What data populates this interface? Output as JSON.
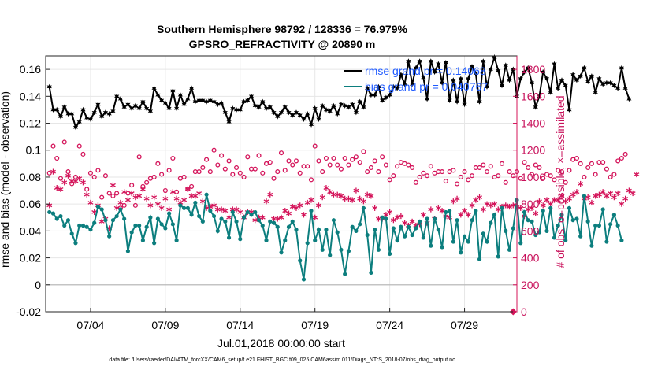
{
  "title_line1": "Southern Hemisphere 98792 / 128336 = 76.979%",
  "title_line2": "GPSRO_REFRACTIVITY @ 20890 m",
  "footer": "data file: /Users/raeder/DAI/ATM_forcXX/CAM6_setup/f.e21.FHIST_BGC.f09_025.CAM6assim.011/Diags_NTrS_2018-07/obs_diag_output.nc",
  "colors": {
    "rmse": "#000000",
    "bias": "#0c7e7e",
    "obs": "#d4145a",
    "zero_line": "#b4b4b4",
    "legend_text": "#1e5aff"
  },
  "chart_data": {
    "type": "line",
    "title": "Southern Hemisphere 98792 / 128336 = 76.979%",
    "subtitle": "GPSRO_REFRACTIVITY @ 20890 m",
    "xlabel": "Jul.01,2018 00:00:00 start",
    "ylabel": "rmse and bias (model - observation)",
    "ylabel_right": "# of obs: o=possible; ×=assimilated",
    "xlim": [
      1,
      32.5
    ],
    "ylim": [
      -0.02,
      0.17
    ],
    "ylim_right": [
      0,
      1900
    ],
    "x_ticks": [
      4,
      9,
      14,
      19,
      24,
      29
    ],
    "x_tick_labels": [
      "07/04",
      "07/09",
      "07/14",
      "07/19",
      "07/24",
      "07/29"
    ],
    "y_ticks": [
      -0.02,
      0,
      0.02,
      0.04,
      0.06,
      0.08,
      0.1,
      0.12,
      0.14,
      0.16
    ],
    "y_tick_labels": [
      "-0.02",
      "0",
      "0.02",
      "0.04",
      "0.06",
      "0.08",
      "0.1",
      "0.12",
      "0.14",
      "0.16"
    ],
    "y_right_ticks": [
      0,
      200,
      400,
      600,
      800,
      1000,
      1200,
      1400,
      1600,
      1800
    ],
    "y_right_tick_labels": [
      "0",
      "200",
      "400",
      "600",
      "800",
      "1000",
      "1200",
      "1400",
      "1600",
      "1800"
    ],
    "grid": true,
    "legend": {
      "placement": "top-right",
      "entries": [
        {
          "series": "rmse",
          "label": "rmse grand pr = 0.14068"
        },
        {
          "series": "bias",
          "label": "bias grand pr = 0.040767"
        }
      ]
    },
    "x_start": 1.25,
    "x_step": 0.25,
    "series": [
      {
        "key": "rmse",
        "axis": "left",
        "marker": "hexagram",
        "line": true,
        "values": [
          0.147,
          0.13,
          0.13,
          0.125,
          0.132,
          0.127,
          0.127,
          0.117,
          0.121,
          0.13,
          0.124,
          0.123,
          0.128,
          0.134,
          0.125,
          0.128,
          0.127,
          0.129,
          0.14,
          0.138,
          0.132,
          0.134,
          0.131,
          0.133,
          0.131,
          0.136,
          0.131,
          0.129,
          0.146,
          0.141,
          0.137,
          0.135,
          0.131,
          0.144,
          0.131,
          0.141,
          0.134,
          0.138,
          0.146,
          0.136,
          0.137,
          0.137,
          0.136,
          0.137,
          0.136,
          0.134,
          0.135,
          0.128,
          0.121,
          0.131,
          0.13,
          0.13,
          0.136,
          0.137,
          0.14,
          0.133,
          0.132,
          0.136,
          0.131,
          0.132,
          0.128,
          0.125,
          0.128,
          0.132,
          0.128,
          0.126,
          0.128,
          0.126,
          0.123,
          0.127,
          0.119,
          0.131,
          0.123,
          0.133,
          0.13,
          0.129,
          0.133,
          0.127,
          0.134,
          0.133,
          0.132,
          0.134,
          0.128,
          0.136,
          0.132,
          0.146,
          0.141,
          0.141,
          0.147,
          0.137,
          0.139,
          0.141,
          0.147,
          0.146,
          0.156,
          0.149,
          0.166,
          0.149,
          0.161,
          0.166,
          0.154,
          0.138,
          0.166,
          0.158,
          0.164,
          0.15,
          0.165,
          0.137,
          0.152,
          0.136,
          0.153,
          0.134,
          0.153,
          0.162,
          0.157,
          0.136,
          0.166,
          0.147,
          0.16,
          0.169,
          0.159,
          0.148,
          0.163,
          0.152,
          0.16,
          0.14,
          0.153,
          0.158,
          0.161,
          0.15,
          0.132,
          0.14,
          0.158,
          0.153,
          0.143,
          0.164,
          0.146,
          0.152,
          0.148,
          0.13,
          0.156,
          0.152,
          0.155,
          0.161,
          0.151,
          0.155,
          0.143,
          0.153,
          0.149,
          0.15,
          0.15,
          0.148,
          0.146,
          0.161,
          0.146,
          0.138
        ]
      },
      {
        "key": "bias",
        "axis": "left",
        "marker": "circle",
        "line": true,
        "values": [
          0.054,
          0.053,
          0.049,
          0.051,
          0.044,
          0.048,
          0.038,
          0.031,
          0.044,
          0.044,
          0.043,
          0.041,
          0.046,
          0.058,
          0.056,
          0.048,
          0.036,
          0.048,
          0.051,
          0.056,
          0.049,
          0.025,
          0.039,
          0.044,
          0.044,
          0.033,
          0.043,
          0.05,
          0.031,
          0.049,
          0.045,
          0.042,
          0.053,
          0.045,
          0.033,
          0.059,
          0.057,
          0.057,
          0.052,
          0.061,
          0.051,
          0.047,
          0.067,
          0.055,
          0.051,
          0.04,
          0.049,
          0.047,
          0.035,
          0.054,
          0.047,
          0.034,
          0.05,
          0.054,
          0.052,
          0.054,
          0.048,
          0.044,
          0.033,
          0.047,
          0.046,
          0.043,
          0.024,
          0.033,
          0.043,
          0.047,
          0.041,
          0.018,
          0.004,
          0.031,
          0.055,
          0.033,
          0.041,
          0.026,
          0.041,
          0.022,
          0.048,
          0.039,
          0.026,
          0.008,
          0.025,
          0.043,
          0.04,
          0.045,
          0.057,
          0.037,
          0.009,
          0.041,
          0.026,
          0.05,
          0.049,
          0.023,
          0.042,
          0.033,
          0.043,
          0.036,
          0.043,
          0.037,
          0.042,
          0.047,
          0.035,
          0.049,
          0.029,
          0.049,
          0.041,
          0.028,
          0.054,
          0.055,
          0.032,
          0.048,
          0.024,
          0.036,
          0.032,
          0.048,
          0.055,
          0.019,
          0.038,
          0.032,
          0.046,
          0.052,
          0.021,
          0.057,
          0.04,
          0.026,
          0.042,
          0.063,
          0.031,
          0.054,
          0.048,
          0.047,
          0.037,
          0.039,
          0.055,
          0.04,
          0.057,
          0.035,
          0.044,
          0.052,
          0.033,
          0.057,
          0.048,
          0.049,
          0.036,
          0.066,
          0.047,
          0.029,
          0.044,
          0.044,
          0.056,
          0.032,
          0.045,
          0.052,
          0.044,
          0.033
        ]
      },
      {
        "key": "possible",
        "axis": "right",
        "marker": "o",
        "line": false,
        "values": [
          1030,
          1230,
          1140,
          990,
          1260,
          1040,
          950,
          1000,
          1230,
          1170,
          910,
          1030,
          1000,
          1050,
          850,
          1010,
          880,
          860,
          880,
          770,
          790,
          880,
          940,
          790,
          1150,
          930,
          960,
          990,
          1000,
          1100,
          1020,
          900,
          1050,
          1140,
          890,
          990,
          1000,
          910,
          930,
          1040,
          1040,
          1070,
          1130,
          1040,
          1200,
          1090,
          1160,
          1060,
          1120,
          1020,
          1070,
          1030,
          1000,
          1150,
          1060,
          1060,
          1160,
          1030,
          1100,
          1110,
          990,
          1040,
          1180,
          1050,
          1120,
          1090,
          1120,
          1030,
          1080,
          1080,
          980,
          1230,
          1120,
          1040,
          1140,
          1090,
          1140,
          1090,
          1060,
          1140,
          1090,
          1130,
          1150,
          1110,
          1190,
          1040,
          1070,
          1120,
          1040,
          1150,
          1090,
          980,
          1010,
          1080,
          1110,
          1100,
          1090,
          1070,
          960,
          1000,
          1030,
          1010,
          1080,
          1030,
          1040,
          1040,
          970,
          1040,
          1050,
          950,
          1000,
          1040,
          980,
          1010,
          1070,
          1070,
          1090,
          1040,
          1080,
          1000,
          1010,
          1100,
          960,
          1040,
          1010,
          1040,
          990,
          1110,
          1070,
          1020,
          1090,
          1070,
          990,
          1020,
          1010,
          980,
          1050,
          1040,
          960,
          1050,
          1130,
          1140,
          1100,
          1000,
          1070,
          1100,
          1020,
          1110,
          1110,
          1060,
          1000,
          1020,
          1120,
          1140,
          1170
        ]
      },
      {
        "key": "assimilated",
        "axis": "right",
        "marker": "asterisk",
        "line": false,
        "values": [
          790,
          1040,
          920,
          910,
          960,
          1010,
          970,
          970,
          990,
          960,
          870,
          810,
          740,
          790,
          670,
          690,
          620,
          940,
          770,
          810,
          890,
          830,
          880,
          850,
          860,
          910,
          840,
          790,
          850,
          800,
          770,
          840,
          760,
          890,
          840,
          810,
          830,
          910,
          860,
          860,
          880,
          820,
          770,
          780,
          790,
          760,
          760,
          750,
          700,
          760,
          760,
          740,
          700,
          740,
          740,
          680,
          700,
          700,
          820,
          870,
          690,
          690,
          700,
          750,
          730,
          780,
          770,
          790,
          720,
          810,
          830,
          700,
          790,
          850,
          920,
          890,
          870,
          870,
          860,
          840,
          840,
          830,
          900,
          840,
          820,
          870,
          860,
          770,
          690,
          690,
          720,
          740,
          680,
          700,
          710,
          660,
          640,
          670,
          640,
          650,
          720,
          660,
          760,
          690,
          770,
          750,
          710,
          700,
          820,
          840,
          720,
          750,
          720,
          790,
          830,
          850,
          760,
          800,
          790,
          800,
          760,
          780,
          790,
          780,
          790,
          780,
          770,
          710,
          760,
          770,
          730,
          820,
          790,
          830,
          800,
          830,
          830,
          860,
          820,
          840,
          870,
          890,
          950,
          840,
          850,
          810,
          860,
          870,
          890,
          860,
          880,
          850,
          880,
          800,
          840,
          900,
          880,
          1020
        ]
      },
      {
        "key": "possible_zero",
        "axis": "right",
        "marker": "diamond",
        "line": false,
        "points": [
          [
            32.25,
            0
          ]
        ]
      }
    ]
  }
}
